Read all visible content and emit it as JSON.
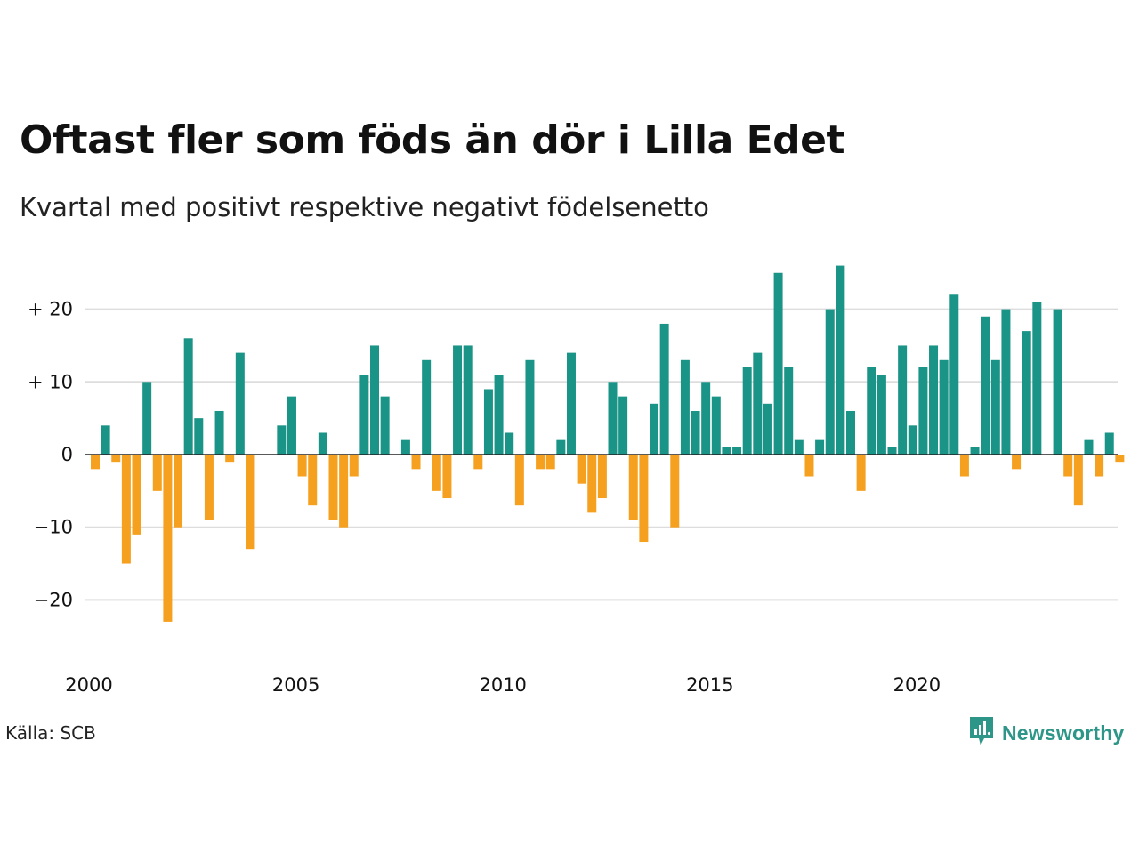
{
  "title": "Oftast fler som föds än dör i Lilla Edet",
  "subtitle": "Kvartal med positivt respektive negativt födelsenetto",
  "source": "Källa: SCB",
  "brand": {
    "name": "Newsworthy",
    "icon": "newsworthy-logo-icon"
  },
  "colors": {
    "positive": "#1a9486",
    "negative": "#f5a01f",
    "grid": "#dddddd",
    "zero": "#222222"
  },
  "chart_data": {
    "type": "bar",
    "title": "Oftast fler som föds än dör i Lilla Edet",
    "subtitle": "Kvartal med positivt respektive negativt födelsenetto",
    "xlabel": "",
    "ylabel": "",
    "start": "2000 Q1",
    "frequency": "quarterly",
    "ylim": [
      -28,
      29
    ],
    "y_ticks": [
      {
        "value": 20,
        "label": "+ 20"
      },
      {
        "value": 10,
        "label": "+ 10"
      },
      {
        "value": 0,
        "label": "0"
      },
      {
        "value": -10,
        "label": "−10"
      },
      {
        "value": -20,
        "label": "−20"
      }
    ],
    "x_ticks": [
      "2000",
      "2005",
      "2010",
      "2015",
      "2020"
    ],
    "grid": true,
    "legend": "none",
    "values": [
      -2,
      4,
      -1,
      -15,
      -11,
      10,
      -5,
      -23,
      -10,
      16,
      5,
      -9,
      6,
      -1,
      14,
      -13,
      0,
      0,
      4,
      8,
      -3,
      -7,
      3,
      -9,
      -10,
      -3,
      11,
      15,
      8,
      0,
      2,
      -2,
      13,
      -5,
      -6,
      15,
      15,
      -2,
      9,
      11,
      3,
      -7,
      13,
      -2,
      -2,
      2,
      14,
      -4,
      -8,
      -6,
      10,
      8,
      -9,
      -12,
      7,
      18,
      -10,
      13,
      6,
      10,
      8,
      1,
      1,
      12,
      14,
      7,
      25,
      12,
      2,
      -3,
      2,
      20,
      26,
      6,
      -5,
      12,
      11,
      1,
      15,
      4,
      12,
      15,
      13,
      22,
      -3,
      1,
      19,
      13,
      20,
      -2,
      17,
      21,
      0,
      20,
      -3,
      -7,
      2,
      -3,
      3,
      -1
    ]
  }
}
